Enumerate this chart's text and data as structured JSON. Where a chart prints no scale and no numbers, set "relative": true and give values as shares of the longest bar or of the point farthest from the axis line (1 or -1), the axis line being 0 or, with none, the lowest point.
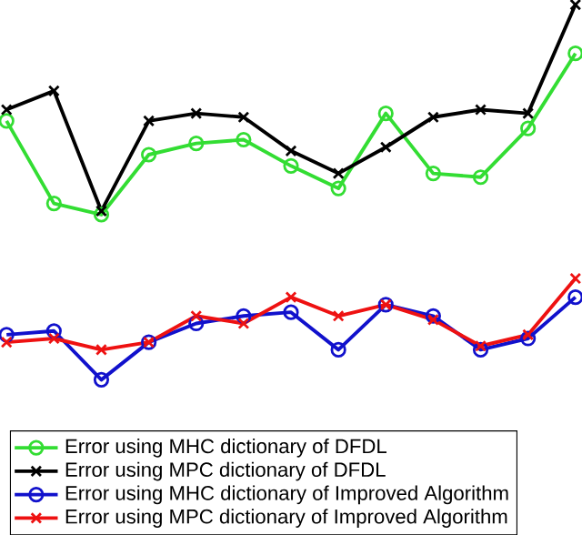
{
  "chart_data": {
    "type": "line",
    "relative": true,
    "legend": "bottom left",
    "categories": [
      null,
      null,
      null,
      null,
      null,
      null,
      null,
      null,
      null,
      null,
      null,
      null,
      null
    ],
    "series": [
      {
        "name": "Error using MHC dictionary of DFDL",
        "color": "#33dd33",
        "marker": "circle",
        "values": [
          0.69,
          0.47,
          0.44,
          0.6,
          0.63,
          0.64,
          0.57,
          0.51,
          0.71,
          0.55,
          0.54,
          0.67,
          0.87
        ]
      },
      {
        "name": "Error using MPC dictionary of DFDL",
        "color": "#000000",
        "marker": "cross",
        "values": [
          0.72,
          0.77,
          0.45,
          0.69,
          0.71,
          0.7,
          0.61,
          0.55,
          0.62,
          0.7,
          0.72,
          0.71,
          1
        ]
      },
      {
        "name": "Error using MHC dictionary of Improved Algorithm",
        "color": "#1111cc",
        "marker": "circle",
        "values": [
          0.12,
          0.13,
          0,
          0.1,
          0.15,
          0.17,
          0.18,
          0.08,
          0.2,
          0.17,
          0.08,
          0.11,
          0.22
        ]
      },
      {
        "name": "Error using MPC dictionary of Improved Algorithm",
        "color": "#ee1111",
        "marker": "cross",
        "values": [
          0.1,
          0.11,
          0.08,
          0.1,
          0.17,
          0.15,
          0.22,
          0.17,
          0.2,
          0.16,
          0.09,
          0.12,
          0.27
        ]
      }
    ]
  }
}
